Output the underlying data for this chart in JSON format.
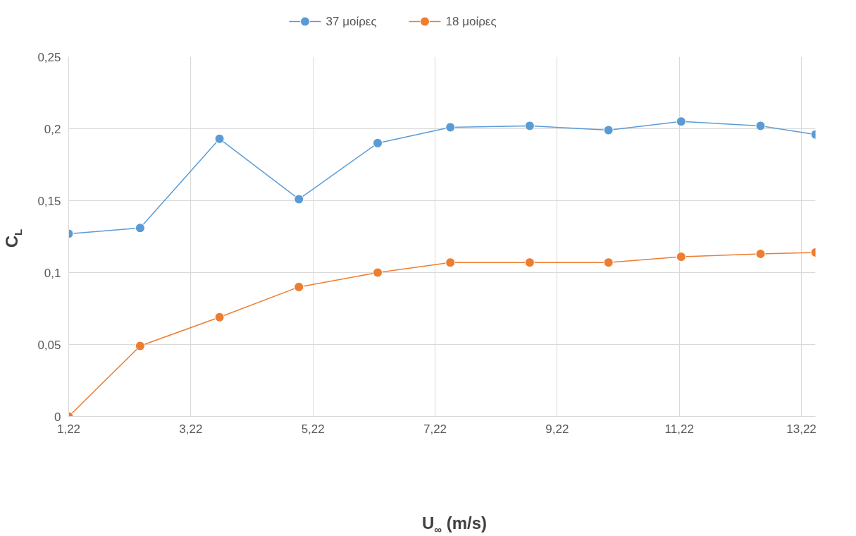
{
  "chart_data": {
    "type": "line",
    "xlabel": "U$_{∞}$ (m/s)",
    "ylabel": "C$_{L}$",
    "series": [
      {
        "name": "37 μοίρες",
        "color": "#5b9bd5",
        "x": [
          1.22,
          2.39,
          3.69,
          4.99,
          6.28,
          7.47,
          8.77,
          10.06,
          11.25,
          12.55,
          13.45
        ],
        "values": [
          0.127,
          0.131,
          0.193,
          0.151,
          0.19,
          0.201,
          0.202,
          0.199,
          0.205,
          0.202,
          0.196
        ]
      },
      {
        "name": "18 μοίρες",
        "color": "#ed7d31",
        "x": [
          1.22,
          2.39,
          3.69,
          4.99,
          6.28,
          7.47,
          8.77,
          10.06,
          11.25,
          12.55,
          13.45
        ],
        "values": [
          0,
          0.049,
          0.069,
          0.09,
          0.1,
          0.107,
          0.107,
          0.107,
          0.111,
          0.113,
          0.114
        ]
      }
    ],
    "xlim": [
      1.22,
      13.45
    ],
    "ylim": [
      0,
      0.25
    ],
    "xticks": [
      {
        "value": 1.22,
        "label": "1,22"
      },
      {
        "value": 3.22,
        "label": "3,22"
      },
      {
        "value": 5.22,
        "label": "5,22"
      },
      {
        "value": 7.22,
        "label": "7,22"
      },
      {
        "value": 9.22,
        "label": "9,22"
      },
      {
        "value": 11.22,
        "label": "11,22"
      },
      {
        "value": 13.22,
        "label": "13,22"
      }
    ],
    "yticks": [
      0,
      {
        "value": 0.05,
        "label": "0,05"
      },
      {
        "value": 0.1,
        "label": "0,1"
      },
      {
        "value": 0.15,
        "label": "0,15"
      },
      {
        "value": 0.2,
        "label": "0,2"
      },
      {
        "value": 0.25,
        "label": "0,25"
      }
    ],
    "grid": true,
    "legend": "top",
    "marker": "circle",
    "line_style": "solid"
  }
}
